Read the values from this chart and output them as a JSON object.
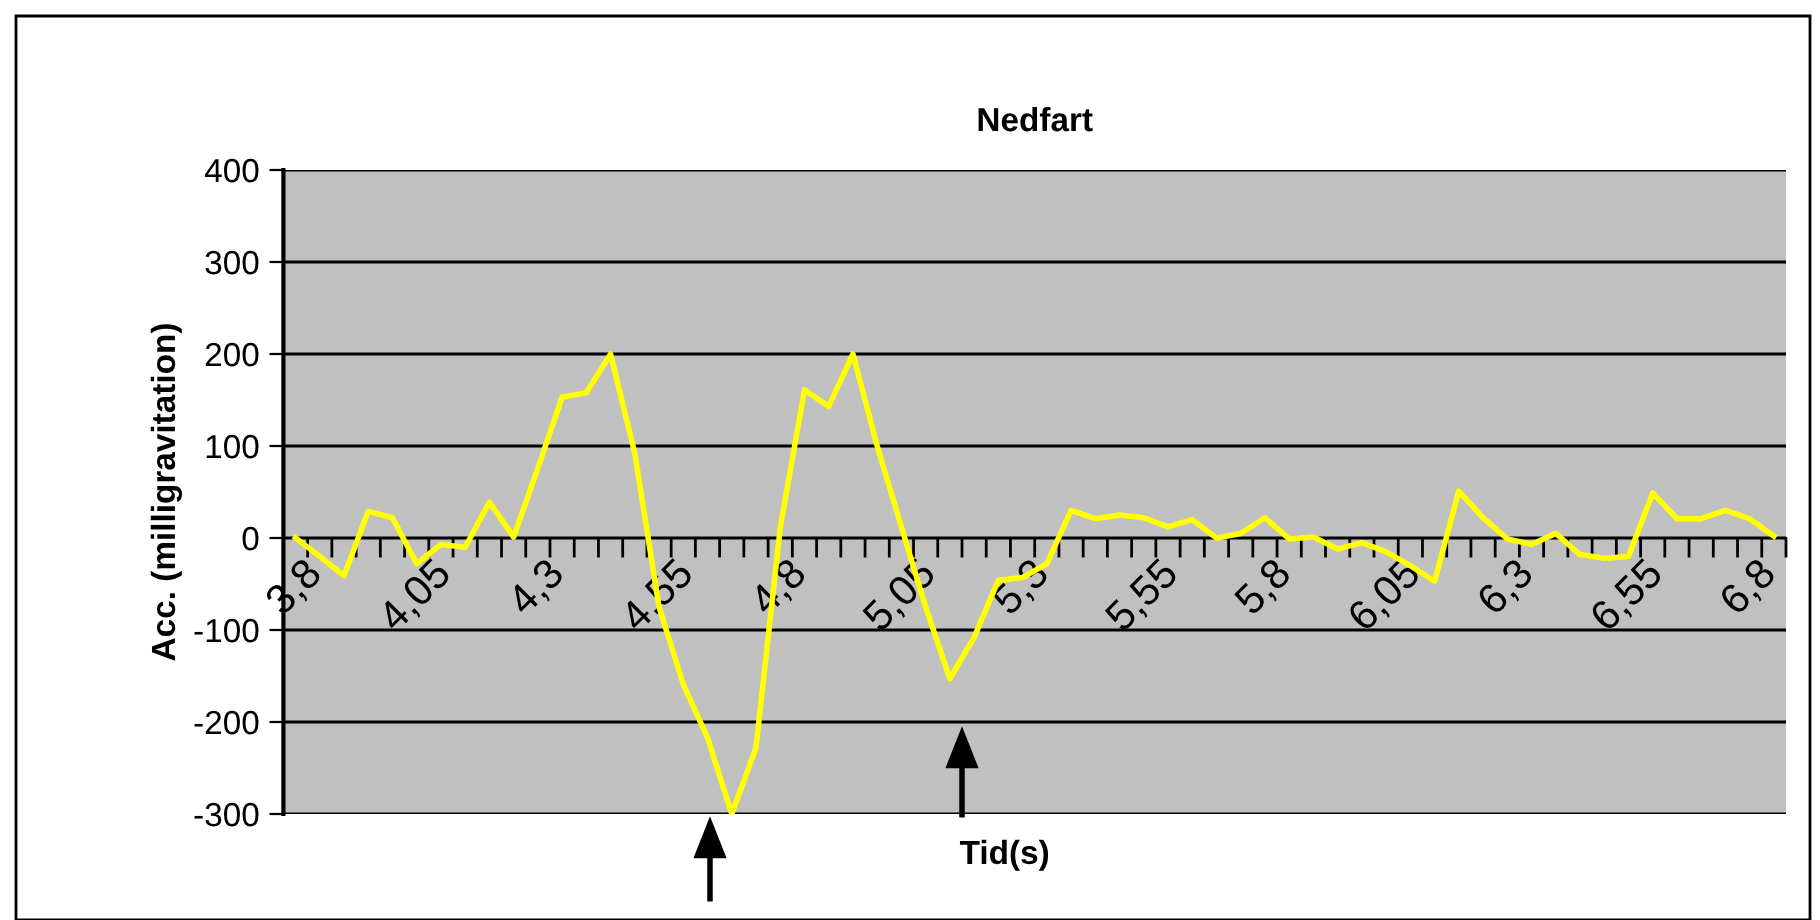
{
  "chart_data": {
    "type": "line",
    "title": "Nedfart",
    "xlabel": "Tid(s)",
    "ylabel": "Acc. (milligravitation)",
    "categories": [
      "3,8",
      null,
      null,
      null,
      null,
      "4,05",
      null,
      null,
      null,
      null,
      "4,3",
      null,
      null,
      null,
      null,
      "4,55",
      null,
      null,
      null,
      null,
      "4,8",
      null,
      null,
      null,
      null,
      "5,05",
      null,
      null,
      null,
      null,
      "5,3",
      null,
      null,
      null,
      null,
      "5,55",
      null,
      null,
      null,
      null,
      "5,8",
      null,
      null,
      null,
      null,
      "6,05",
      null,
      null,
      null,
      null,
      "6,3",
      null,
      null,
      null,
      null,
      "6,55",
      null,
      null,
      null,
      null,
      "6,8",
      null
    ],
    "series": [
      {
        "color": "#ffff00",
        "values": [
          0,
          -20,
          -41,
          29,
          22,
          -28,
          -7,
          -10,
          39,
          1,
          76,
          153,
          158,
          200,
          92,
          -75,
          -159,
          -217,
          -300,
          -228,
          11,
          161,
          143,
          200,
          100,
          12,
          -75,
          -153,
          -108,
          -46,
          -43,
          -28,
          30,
          21,
          25,
          22,
          12,
          20,
          0,
          5,
          22,
          -1,
          1,
          -12,
          -5,
          -15,
          -30,
          -47,
          51,
          22,
          -1,
          -7,
          5,
          -18,
          -22,
          -20,
          49,
          21,
          21,
          30,
          21,
          2
        ]
      }
    ],
    "ylim": [
      -300,
      400
    ],
    "yticks": [
      -300,
      -200,
      -100,
      0,
      100,
      200,
      300,
      400
    ],
    "grid": "y"
  }
}
